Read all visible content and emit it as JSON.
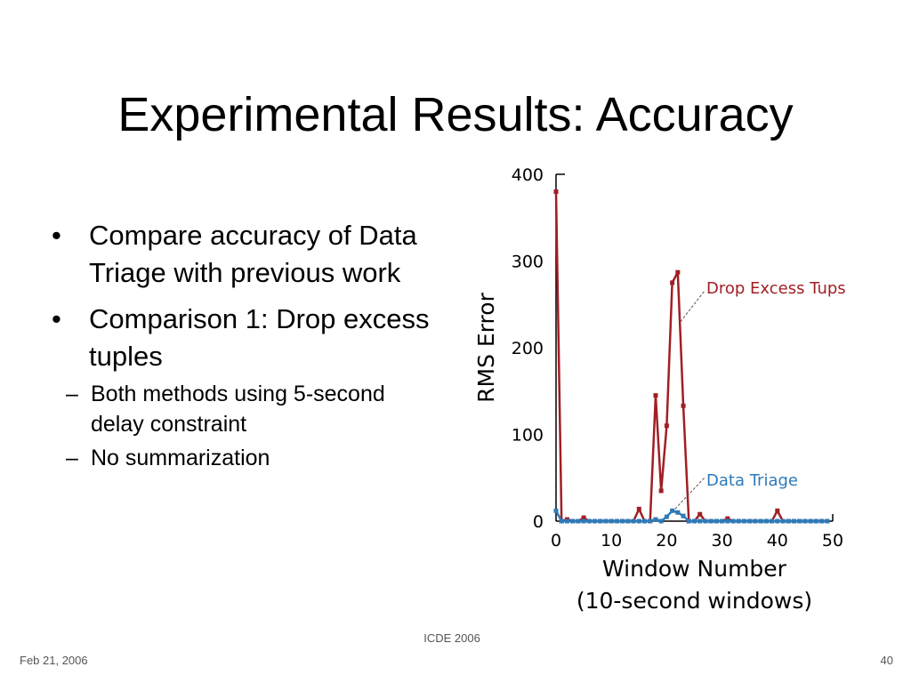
{
  "slide": {
    "title": "Experimental Results: Accuracy",
    "bullets": [
      {
        "text": "Compare accuracy of Data Triage with previous work",
        "sub": []
      },
      {
        "text": "Comparison 1: Drop excess tuples",
        "sub": [
          "Both methods using 5-second delay constraint",
          "No summarization"
        ]
      }
    ],
    "footer": {
      "center": "ICDE 2006",
      "left": "Feb 21, 2006",
      "right": "40"
    }
  },
  "chart_data": {
    "type": "line",
    "title": "",
    "xlabel": "Window Number",
    "xlabel2": "(10-second windows)",
    "ylabel": "RMS Error",
    "xlim": [
      0,
      50
    ],
    "ylim": [
      0,
      400
    ],
    "xticks": [
      0,
      10,
      20,
      30,
      40,
      50
    ],
    "yticks": [
      0,
      100,
      200,
      300,
      400
    ],
    "grid": false,
    "series": [
      {
        "name": "Drop Excess Tups",
        "color": "#a01f24",
        "x": [
          0,
          1,
          2,
          3,
          4,
          5,
          6,
          7,
          8,
          9,
          10,
          11,
          12,
          13,
          14,
          15,
          16,
          17,
          18,
          19,
          20,
          21,
          22,
          23,
          24,
          25,
          26,
          27,
          28,
          29,
          30,
          31,
          32,
          33,
          34,
          35,
          36,
          37,
          38,
          39,
          40,
          41,
          42,
          43,
          44,
          45,
          46,
          47,
          48,
          49
        ],
        "values": [
          380,
          0,
          2,
          0,
          0,
          4,
          0,
          0,
          0,
          0,
          0,
          0,
          0,
          0,
          0,
          14,
          0,
          0,
          145,
          35,
          110,
          275,
          287,
          133,
          0,
          0,
          8,
          0,
          0,
          0,
          0,
          3,
          0,
          0,
          0,
          0,
          0,
          0,
          0,
          0,
          12,
          0,
          0,
          0,
          0,
          0,
          0,
          0,
          0,
          0
        ]
      },
      {
        "name": "Data Triage",
        "color": "#2e7ab8",
        "x": [
          0,
          1,
          2,
          3,
          4,
          5,
          6,
          7,
          8,
          9,
          10,
          11,
          12,
          13,
          14,
          15,
          16,
          17,
          18,
          19,
          20,
          21,
          22,
          23,
          24,
          25,
          26,
          27,
          28,
          29,
          30,
          31,
          32,
          33,
          34,
          35,
          36,
          37,
          38,
          39,
          40,
          41,
          42,
          43,
          44,
          45,
          46,
          47,
          48,
          49
        ],
        "values": [
          12,
          0,
          0,
          0,
          0,
          0,
          0,
          0,
          0,
          0,
          0,
          0,
          0,
          0,
          0,
          0,
          0,
          0,
          2,
          0,
          5,
          12,
          10,
          6,
          0,
          0,
          0,
          0,
          0,
          0,
          0,
          0,
          0,
          0,
          0,
          0,
          0,
          0,
          0,
          0,
          0,
          0,
          0,
          0,
          0,
          0,
          0,
          0,
          0,
          0
        ]
      }
    ]
  }
}
